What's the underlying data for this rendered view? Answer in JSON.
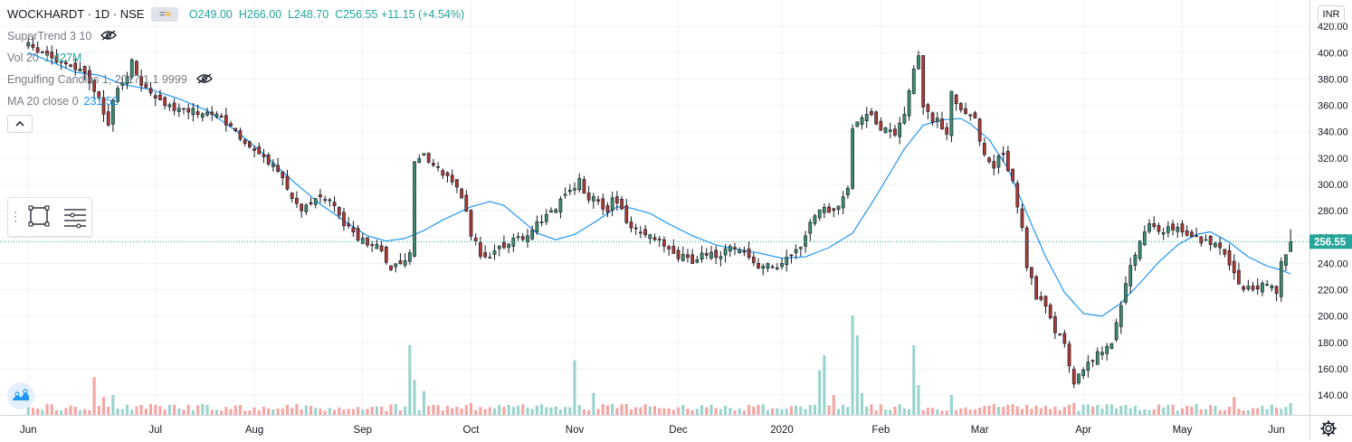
{
  "header": {
    "symbol": "WOCKHARDT · 1D · NSE",
    "open": "O249.00",
    "high": "H266.00",
    "low": "L248.70",
    "close": "C256.55",
    "change": "+11.15 (+4.54%)",
    "badge_left": "=",
    "badge_right": "≈"
  },
  "indicators": {
    "supertrend": "SuperTrend 3 10",
    "vol_label": "Vol 20",
    "vol_value": "1.427M",
    "engulfing": "Engulfing Candles 1, 2017 1 1 9999",
    "ma_label": "MA 20 close 0",
    "ma_value": "231.52"
  },
  "currency": "INR",
  "price_tag": "256.55",
  "colors": {
    "up": "#26a69a",
    "down": "#ef5350",
    "up_candle_fill": "#3d8c6e",
    "down_candle_fill": "#a93a35",
    "ma": "#2196f3",
    "vol_up": "#9bd3cd",
    "vol_down": "#f4a6a4",
    "grid": "#f0f3fa",
    "price_line": "#26a69a"
  },
  "icons": [
    "eye-hidden-icon",
    "rectangle-tool-icon",
    "lines-tool-icon",
    "chevron-up-icon",
    "tradingview-logo-icon",
    "gear-icon"
  ],
  "chart_data": {
    "type": "candlestick",
    "title": "WOCKHARDT · 1D · NSE",
    "y_ticks": [
      140,
      160,
      180,
      200,
      220,
      240,
      260,
      280,
      300,
      320,
      340,
      360,
      380,
      400,
      420
    ],
    "ylim": [
      125,
      440
    ],
    "x_ticks": [
      "Jun",
      "Jul",
      "Aug",
      "Sep",
      "Oct",
      "Nov",
      "Dec",
      "2020",
      "Feb",
      "Mar",
      "Apr",
      "May",
      "Jun"
    ],
    "x_tick_days": [
      0,
      27,
      48,
      71,
      94,
      116,
      138,
      160,
      181,
      202,
      224,
      245,
      265
    ],
    "x_range": [
      -6,
      272
    ],
    "last_price": 256.55,
    "close_anchors": [
      [
        0,
        405
      ],
      [
        4,
        398
      ],
      [
        8,
        390
      ],
      [
        12,
        385
      ],
      [
        13,
        375
      ],
      [
        15,
        365
      ],
      [
        17,
        345
      ],
      [
        18,
        365
      ],
      [
        20,
        375
      ],
      [
        22,
        393
      ],
      [
        24,
        374
      ],
      [
        26,
        370
      ],
      [
        28,
        364
      ],
      [
        30,
        358
      ],
      [
        33,
        355
      ],
      [
        36,
        356
      ],
      [
        40,
        352
      ],
      [
        43,
        345
      ],
      [
        46,
        330
      ],
      [
        50,
        320
      ],
      [
        53,
        310
      ],
      [
        55,
        295
      ],
      [
        58,
        282
      ],
      [
        61,
        290
      ],
      [
        64,
        286
      ],
      [
        67,
        271
      ],
      [
        69,
        262
      ],
      [
        72,
        256
      ],
      [
        75,
        250
      ],
      [
        77,
        237
      ],
      [
        79,
        240
      ],
      [
        81,
        247
      ],
      [
        82,
        320
      ],
      [
        84,
        325
      ],
      [
        86,
        313
      ],
      [
        89,
        305
      ],
      [
        91,
        296
      ],
      [
        93,
        280
      ],
      [
        94,
        262
      ],
      [
        96,
        248
      ],
      [
        98,
        242
      ],
      [
        100,
        253
      ],
      [
        103,
        258
      ],
      [
        106,
        262
      ],
      [
        108,
        270
      ],
      [
        110,
        278
      ],
      [
        112,
        283
      ],
      [
        115,
        293
      ],
      [
        117,
        302
      ],
      [
        119,
        290
      ],
      [
        121,
        287
      ],
      [
        123,
        278
      ],
      [
        124,
        290
      ],
      [
        126,
        280
      ],
      [
        128,
        266
      ],
      [
        130,
        262
      ],
      [
        133,
        258
      ],
      [
        136,
        250
      ],
      [
        139,
        244
      ],
      [
        141,
        242
      ],
      [
        143,
        245
      ],
      [
        146,
        247
      ],
      [
        149,
        250
      ],
      [
        152,
        249
      ],
      [
        154,
        240
      ],
      [
        156,
        237
      ],
      [
        159,
        238
      ],
      [
        161,
        242
      ],
      [
        163,
        248
      ],
      [
        165,
        258
      ],
      [
        166,
        272
      ],
      [
        168,
        283
      ],
      [
        170,
        280
      ],
      [
        172,
        285
      ],
      [
        174,
        300
      ],
      [
        175,
        340
      ],
      [
        177,
        353
      ],
      [
        179,
        350
      ],
      [
        181,
        340
      ],
      [
        184,
        340
      ],
      [
        186,
        355
      ],
      [
        188,
        385
      ],
      [
        189,
        395
      ],
      [
        190,
        360
      ],
      [
        192,
        345
      ],
      [
        193,
        348
      ],
      [
        195,
        340
      ],
      [
        196,
        370
      ],
      [
        198,
        355
      ],
      [
        201,
        348
      ],
      [
        203,
        320
      ],
      [
        205,
        315
      ],
      [
        207,
        323
      ],
      [
        209,
        300
      ],
      [
        211,
        265
      ],
      [
        212,
        238
      ],
      [
        214,
        215
      ],
      [
        216,
        205
      ],
      [
        218,
        190
      ],
      [
        220,
        180
      ],
      [
        222,
        150
      ],
      [
        224,
        162
      ],
      [
        226,
        168
      ],
      [
        228,
        175
      ],
      [
        230,
        180
      ],
      [
        232,
        205
      ],
      [
        233,
        222
      ],
      [
        234,
        240
      ],
      [
        236,
        255
      ],
      [
        238,
        270
      ],
      [
        240,
        265
      ],
      [
        243,
        268
      ],
      [
        246,
        262
      ],
      [
        249,
        258
      ],
      [
        252,
        256
      ],
      [
        254,
        245
      ],
      [
        256,
        233
      ],
      [
        258,
        218
      ],
      [
        260,
        222
      ],
      [
        262,
        225
      ],
      [
        264,
        224
      ],
      [
        265,
        218
      ],
      [
        266,
        240
      ],
      [
        267,
        246
      ],
      [
        268,
        256.55
      ]
    ],
    "ma_anchors": [
      [
        0,
        400
      ],
      [
        5,
        393
      ],
      [
        10,
        385
      ],
      [
        15,
        383
      ],
      [
        20,
        376
      ],
      [
        26,
        372
      ],
      [
        32,
        365
      ],
      [
        38,
        356
      ],
      [
        44,
        341
      ],
      [
        50,
        323
      ],
      [
        56,
        303
      ],
      [
        62,
        285
      ],
      [
        68,
        270
      ],
      [
        72,
        261
      ],
      [
        76,
        257
      ],
      [
        80,
        259
      ],
      [
        84,
        265
      ],
      [
        88,
        273
      ],
      [
        94,
        283
      ],
      [
        98,
        287
      ],
      [
        101,
        284
      ],
      [
        104,
        275
      ],
      [
        108,
        263
      ],
      [
        112,
        258
      ],
      [
        116,
        262
      ],
      [
        121,
        273
      ],
      [
        125,
        283
      ],
      [
        128,
        282
      ],
      [
        132,
        278
      ],
      [
        136,
        270
      ],
      [
        141,
        261
      ],
      [
        146,
        254
      ],
      [
        150,
        251
      ],
      [
        155,
        248
      ],
      [
        160,
        244
      ],
      [
        165,
        245
      ],
      [
        170,
        252
      ],
      [
        175,
        263
      ],
      [
        180,
        291
      ],
      [
        186,
        327
      ],
      [
        190,
        345
      ],
      [
        194,
        349
      ],
      [
        198,
        350
      ],
      [
        200,
        346
      ],
      [
        204,
        334
      ],
      [
        208,
        312
      ],
      [
        212,
        278
      ],
      [
        216,
        245
      ],
      [
        220,
        218
      ],
      [
        224,
        202
      ],
      [
        228,
        200
      ],
      [
        232,
        210
      ],
      [
        236,
        225
      ],
      [
        240,
        241
      ],
      [
        244,
        254
      ],
      [
        248,
        262
      ],
      [
        251,
        264
      ],
      [
        255,
        256
      ],
      [
        259,
        245
      ],
      [
        263,
        238
      ],
      [
        266,
        235
      ],
      [
        268,
        232
      ]
    ],
    "volume_spikes": [
      [
        14,
        0.38
      ],
      [
        16,
        0.18
      ],
      [
        18,
        0.2
      ],
      [
        45,
        0.1
      ],
      [
        70,
        0.08
      ],
      [
        81,
        0.7
      ],
      [
        82,
        0.35
      ],
      [
        84,
        0.24
      ],
      [
        94,
        0.12
      ],
      [
        96,
        0.08
      ],
      [
        116,
        0.55
      ],
      [
        120,
        0.22
      ],
      [
        139,
        0.1
      ],
      [
        168,
        0.45
      ],
      [
        169,
        0.6
      ],
      [
        171,
        0.2
      ],
      [
        175,
        1.0
      ],
      [
        176,
        0.8
      ],
      [
        177,
        0.22
      ],
      [
        188,
        0.7
      ],
      [
        189,
        0.3
      ],
      [
        196,
        0.2
      ],
      [
        212,
        0.1
      ],
      [
        222,
        0.12
      ],
      [
        233,
        0.1
      ],
      [
        256,
        0.18
      ],
      [
        268,
        0.12
      ]
    ]
  }
}
